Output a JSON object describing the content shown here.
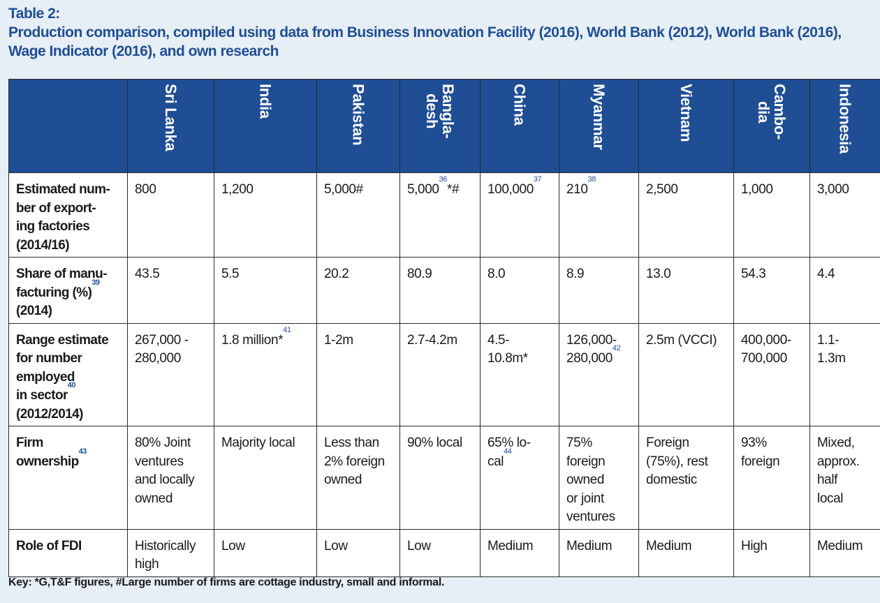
{
  "title": {
    "label": "Table 2:",
    "text": "Production comparison, compiled using data from Business Innovation Facility (2016), World Bank (2012), World Bank (2016), Wage Indicator (2016), and own research"
  },
  "columns": [
    "Sri Lanka",
    "India",
    "Pakistan",
    "Bangla-\ndesh",
    "China",
    "Myanmar",
    "Vietnam",
    "Cambo-\ndia",
    "Indonesia"
  ],
  "rows": [
    {
      "label": "Estimated num-\nber of export-\ning factories\n(2014/16)",
      "cells": [
        {
          "text": "800"
        },
        {
          "text": "1,200"
        },
        {
          "text": "5,000#"
        },
        {
          "text": "5,000",
          "sup": "36",
          "after": "*#"
        },
        {
          "text": "100,000",
          "sup": "37"
        },
        {
          "text": "210",
          "sup": "38"
        },
        {
          "text": "2,500"
        },
        {
          "text": "1,000"
        },
        {
          "text": "3,000"
        }
      ]
    },
    {
      "label": "Share of manu-\nfacturing (%)",
      "label_sup": "39",
      "label_after": "\n(2014)",
      "cells": [
        {
          "text": "43.5"
        },
        {
          "text": "5.5"
        },
        {
          "text": "20.2"
        },
        {
          "text": "80.9"
        },
        {
          "text": "8.0"
        },
        {
          "text": "8.9"
        },
        {
          "text": "13.0"
        },
        {
          "text": "54.3"
        },
        {
          "text": "4.4"
        }
      ]
    },
    {
      "label": "Range estimate\nfor number\nemployed\nin sector",
      "label_sup": "40",
      "label_after": "\n(2012/2014)",
      "cells": [
        {
          "text": "267,000 -\n280,000"
        },
        {
          "text": "1.8 million*",
          "sup": "41"
        },
        {
          "text": "1-2m"
        },
        {
          "text": "2.7-4.2m"
        },
        {
          "text": "4.5-\n10.8m*"
        },
        {
          "text": "126,000-\n280,000",
          "sup": "42"
        },
        {
          "text": "2.5m (VCCI)"
        },
        {
          "text": "400,000-\n700,000"
        },
        {
          "text": "1.1-\n1.3m"
        }
      ]
    },
    {
      "label": "Firm\nownership",
      "label_sup": "43",
      "cells": [
        {
          "text": "80% Joint\nventures\nand locally\nowned"
        },
        {
          "text": "Majority local"
        },
        {
          "text": "Less than\n2% foreign\nowned"
        },
        {
          "text": "90% local"
        },
        {
          "text": "65% lo-\ncal",
          "sup": "44"
        },
        {
          "text": "75%\nforeign\nowned\nor joint\nventures"
        },
        {
          "text": "Foreign\n(75%), rest\ndomestic"
        },
        {
          "text": "93%\nforeign"
        },
        {
          "text": "Mixed,\napprox.\nhalf\nlocal"
        }
      ]
    },
    {
      "label": "Role of FDI",
      "cells": [
        {
          "text": "Historically\nhigh"
        },
        {
          "text": "Low"
        },
        {
          "text": "Low"
        },
        {
          "text": "Low"
        },
        {
          "text": "Medium"
        },
        {
          "text": "Medium"
        },
        {
          "text": "Medium"
        },
        {
          "text": "High"
        },
        {
          "text": "Medium"
        }
      ]
    }
  ],
  "key": "Key: *G,T&F figures, #Large number of firms are cottage industry, small and informal.",
  "colors": {
    "accent": "#1f4e94",
    "background": "#e6eef6",
    "cell": "#ffffff"
  }
}
